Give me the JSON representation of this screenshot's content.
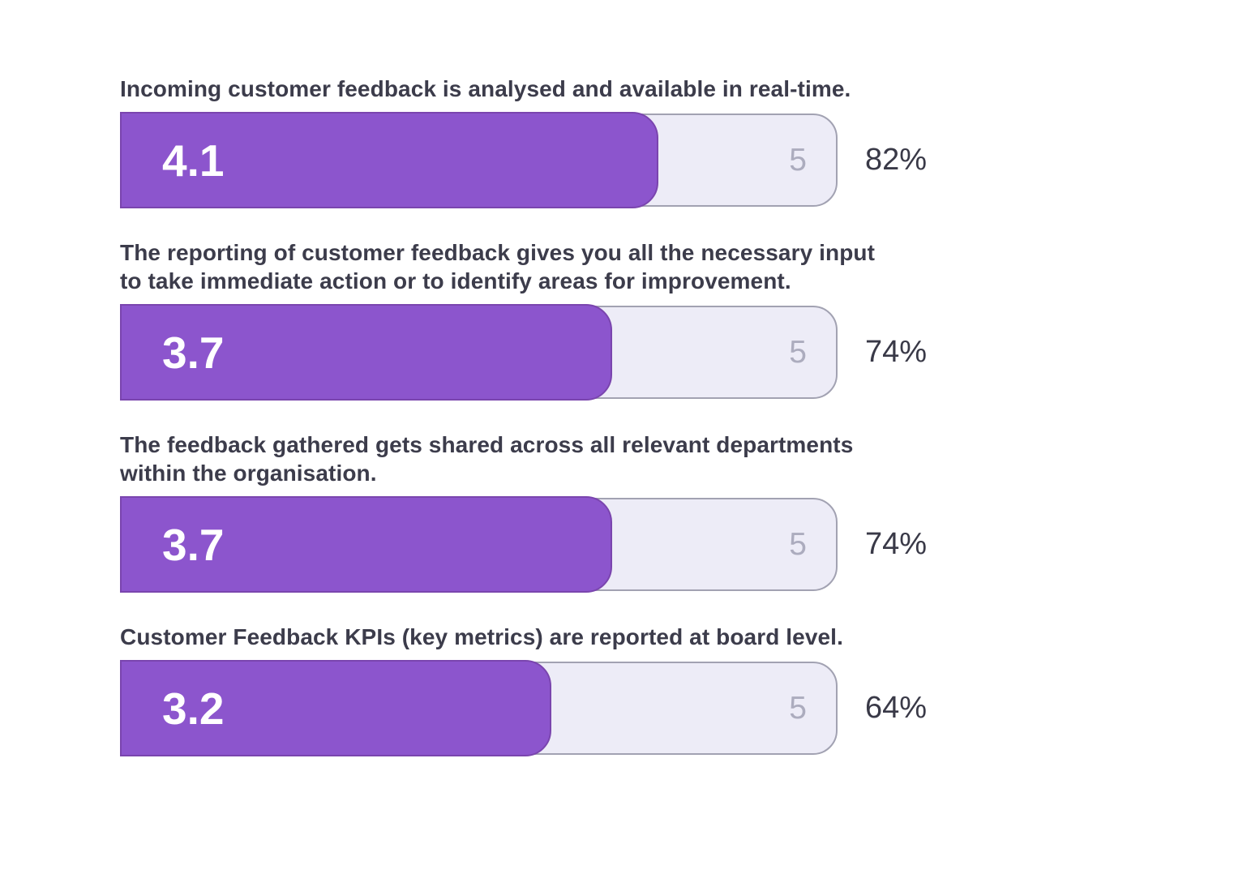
{
  "page": {
    "background": "#FFFFFF"
  },
  "chart_data": {
    "type": "bar",
    "orientation": "horizontal",
    "max_value": 5,
    "legend": false,
    "grid": false,
    "value_suffix_scale": "score out of 5 with percentage label",
    "items": [
      {
        "label": "Incoming customer feedback is analysed and available in real-time.",
        "label_lines": [
          "Incoming customer feedback is analysed and available in real-time."
        ],
        "score": "4.1",
        "max": "5",
        "percent": "82%",
        "fill_pct": 75.4
      },
      {
        "label": "The reporting of customer feedback gives you all the necessary input to take immediate action or to identify areas for improvement.",
        "label_lines": [
          "The reporting of customer feedback gives you all the necessary input",
          "to take immediate action or to identify areas for improvement."
        ],
        "score": "3.7",
        "max": "5",
        "percent": "74%",
        "fill_pct": 68.9
      },
      {
        "label": "The feedback gathered gets shared across all relevant departments within the organisation.",
        "label_lines": [
          "The feedback gathered gets shared across all relevant departments",
          "within the organisation."
        ],
        "score": "3.7",
        "max": "5",
        "percent": "74%",
        "fill_pct": 68.9
      },
      {
        "label": "Customer Feedback KPIs (key metrics) are reported at board level.",
        "label_lines": [
          "Customer Feedback KPIs (key metrics) are reported at board level."
        ],
        "score": "3.2",
        "max": "5",
        "percent": "64%",
        "fill_pct": 60.4
      }
    ],
    "colors": {
      "bar_fill": "#8C55CD",
      "bar_fill_border": "#7A45AE",
      "track": "#EDECF7",
      "track_border": "#A2A2B2",
      "label_text": "#3C3C4B",
      "score_text": "#FFFFFF",
      "max_text": "#ACACBE",
      "percent_text": "#393947"
    }
  }
}
